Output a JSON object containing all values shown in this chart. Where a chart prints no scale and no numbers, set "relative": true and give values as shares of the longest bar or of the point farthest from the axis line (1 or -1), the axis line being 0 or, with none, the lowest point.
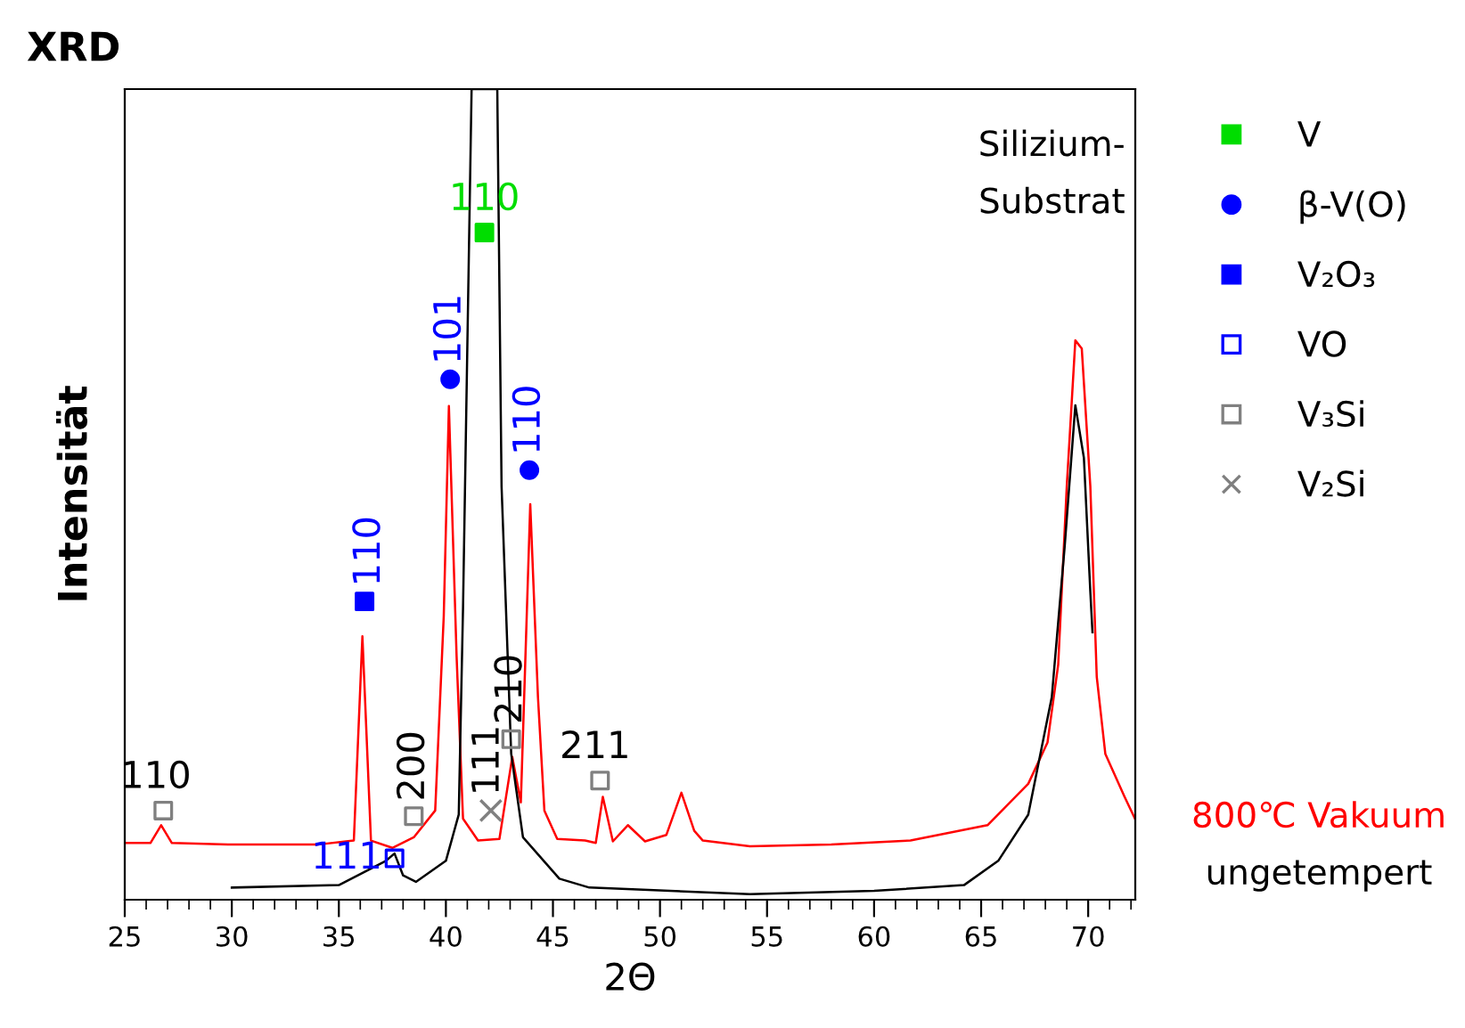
{
  "chart_data": {
    "type": "line",
    "title": "XRD",
    "xlabel": "2Θ",
    "ylabel": "Intensität",
    "relative": true,
    "xlim": [
      25,
      72.2
    ],
    "xticks": [
      25,
      30,
      35,
      40,
      45,
      50,
      55,
      60,
      65,
      70
    ],
    "legend": "right",
    "annotations": [
      "Silizium-\nSubstrat",
      {
        "text": "110",
        "x": 41.8,
        "y": 0.823
      },
      {
        "text": "101",
        "x": 40.2,
        "y": 0.642
      },
      {
        "text": "110",
        "x": 43.9,
        "y": 0.53
      },
      {
        "text": "110",
        "x": 36.2,
        "y": 0.368
      },
      {
        "text": "111",
        "x": 37.6,
        "y": 0.051
      },
      {
        "text": "110",
        "x": 26.8,
        "y": 0.11
      },
      {
        "text": "200",
        "x": 38.5,
        "y": 0.103
      },
      {
        "text": "210",
        "x": 43.05,
        "y": 0.198
      },
      {
        "text": "211",
        "x": 47.2,
        "y": 0.147
      },
      {
        "text": "111",
        "x": 42.1,
        "y": 0.11
      }
    ],
    "series": [
      {
        "name": "800℃ Vakuum",
        "color": "#ff0000",
        "x": [
          25,
          26.2,
          26.7,
          27.2,
          30,
          34,
          35.7,
          36.1,
          36.5,
          37.5,
          38.5,
          39.5,
          39.9,
          40.14,
          40.5,
          40.8,
          41.5,
          42.5,
          43.1,
          43.5,
          43.94,
          44.3,
          44.6,
          45.2,
          46.5,
          47.0,
          47.33,
          47.8,
          48.5,
          49.3,
          50.3,
          51.0,
          51.6,
          52,
          54.2,
          58,
          61.7,
          65.3,
          67.2,
          68.1,
          68.6,
          69.0,
          69.4,
          69.7,
          70.1,
          70.4,
          70.8,
          71.7,
          72.2
        ],
        "values": [
          0.07,
          0.07,
          0.092,
          0.07,
          0.068,
          0.068,
          0.073,
          0.325,
          0.073,
          0.064,
          0.077,
          0.11,
          0.35,
          0.609,
          0.3,
          0.1,
          0.073,
          0.075,
          0.176,
          0.12,
          0.488,
          0.25,
          0.11,
          0.075,
          0.073,
          0.07,
          0.127,
          0.072,
          0.092,
          0.072,
          0.08,
          0.132,
          0.085,
          0.073,
          0.066,
          0.068,
          0.073,
          0.092,
          0.143,
          0.194,
          0.29,
          0.51,
          0.69,
          0.68,
          0.51,
          0.275,
          0.18,
          0.127,
          0.099
        ]
      },
      {
        "name": "ungetempert",
        "color": "#000000",
        "x": [
          30,
          35,
          37.2,
          37.6,
          38.0,
          38.6,
          40.0,
          40.6,
          40.8,
          41.2,
          42.4,
          42.6,
          43.05,
          43.6,
          45.3,
          46.7,
          54.2,
          60,
          64.2,
          65.8,
          67.2,
          68.3,
          68.9,
          69.4,
          69.8,
          70.1,
          70.2
        ],
        "values": [
          0.015,
          0.018,
          0.048,
          0.057,
          0.03,
          0.022,
          0.048,
          0.105,
          0.36,
          1.0,
          1.0,
          0.51,
          0.18,
          0.077,
          0.026,
          0.015,
          0.007,
          0.011,
          0.018,
          0.048,
          0.105,
          0.25,
          0.435,
          0.61,
          0.545,
          0.38,
          0.33
        ]
      },
      {
        "name": "V",
        "type": "scatter",
        "marker": "square",
        "color": "#00dd00",
        "x": [
          41.8
        ],
        "values": [
          0.823
        ]
      },
      {
        "name": "β-V(O)",
        "type": "scatter",
        "marker": "circle",
        "color": "#0000ff",
        "x": [
          40.2,
          43.9
        ],
        "values": [
          0.642,
          0.53
        ]
      },
      {
        "name": "V₂O₃",
        "type": "scatter",
        "marker": "square",
        "color": "#0000ff",
        "x": [
          36.2
        ],
        "values": [
          0.368
        ]
      },
      {
        "name": "VO",
        "type": "scatter",
        "marker": "square",
        "color": "#0000ff",
        "x": [
          37.6
        ],
        "values": [
          0.051
        ]
      },
      {
        "name": "V₃Si",
        "type": "scatter",
        "marker": "square",
        "color": "#808080",
        "x": [
          26.8,
          38.5,
          43.05,
          47.2
        ],
        "values": [
          0.11,
          0.103,
          0.198,
          0.147
        ]
      },
      {
        "name": "V₂Si",
        "type": "scatter",
        "marker": "cross",
        "color": "#808080",
        "x": [
          42.1
        ],
        "values": [
          0.11
        ]
      }
    ]
  }
}
